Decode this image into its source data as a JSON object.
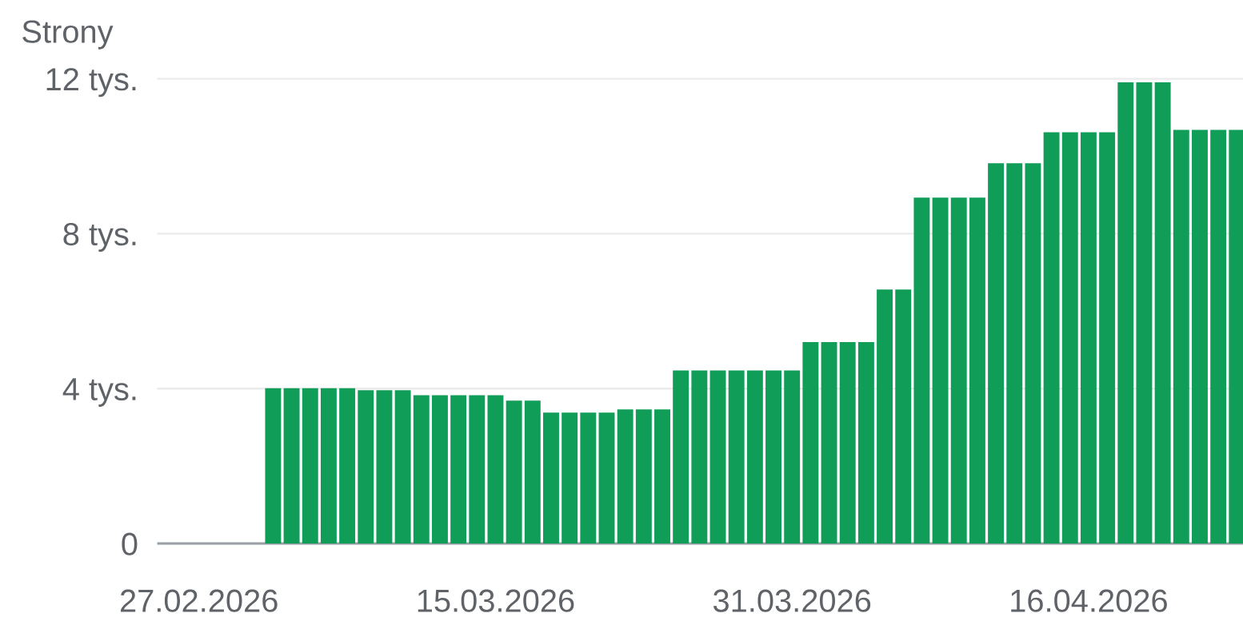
{
  "chart_data": {
    "type": "bar",
    "ylabel": "Strony",
    "x": [
      "2026-03-03",
      "2026-03-04",
      "2026-03-05",
      "2026-03-06",
      "2026-03-07",
      "2026-03-08",
      "2026-03-09",
      "2026-03-10",
      "2026-03-11",
      "2026-03-12",
      "2026-03-13",
      "2026-03-14",
      "2026-03-15",
      "2026-03-16",
      "2026-03-17",
      "2026-03-18",
      "2026-03-19",
      "2026-03-20",
      "2026-03-21",
      "2026-03-22",
      "2026-03-23",
      "2026-03-24",
      "2026-03-25",
      "2026-03-26",
      "2026-03-27",
      "2026-03-28",
      "2026-03-29",
      "2026-03-30",
      "2026-03-31",
      "2026-04-01",
      "2026-04-02",
      "2026-04-03",
      "2026-04-04",
      "2026-04-05",
      "2026-04-06",
      "2026-04-07",
      "2026-04-08",
      "2026-04-09",
      "2026-04-10",
      "2026-04-11",
      "2026-04-12",
      "2026-04-13",
      "2026-04-14",
      "2026-04-15",
      "2026-04-16",
      "2026-04-17",
      "2026-04-18",
      "2026-04-19",
      "2026-04-20",
      "2026-04-21",
      "2026-04-22",
      "2026-04-23",
      "2026-04-24"
    ],
    "values": [
      4.01,
      4.01,
      4.01,
      4.01,
      4.01,
      3.96,
      3.96,
      3.96,
      3.83,
      3.83,
      3.83,
      3.83,
      3.83,
      3.69,
      3.69,
      3.38,
      3.38,
      3.38,
      3.38,
      3.46,
      3.46,
      3.46,
      4.47,
      4.47,
      4.47,
      4.47,
      4.47,
      4.47,
      4.47,
      5.2,
      5.2,
      5.2,
      5.2,
      6.56,
      6.56,
      8.93,
      8.93,
      8.93,
      8.93,
      9.82,
      9.82,
      9.82,
      10.62,
      10.62,
      10.62,
      10.62,
      11.91,
      11.91,
      11.91,
      10.68,
      10.68,
      10.68,
      10.68
    ],
    "color": "#0f9d58",
    "xlim": [
      "2026-02-24T18:00",
      "2026-04-24T08:00"
    ],
    "xticks": [
      {
        "value": "2026-02-27",
        "label": "27.02.2026"
      },
      {
        "value": "2026-03-15",
        "label": "15.03.2026"
      },
      {
        "value": "2026-03-31",
        "label": "31.03.2026"
      },
      {
        "value": "2026-04-16",
        "label": "16.04.2026"
      }
    ],
    "ylim": [
      0,
      12
    ],
    "yticks": [
      0,
      {
        "value": 4,
        "label": "4 tys."
      },
      {
        "value": 8,
        "label": "8 tys."
      },
      {
        "value": 12,
        "label": "12 tys."
      }
    ],
    "grid": "y"
  }
}
